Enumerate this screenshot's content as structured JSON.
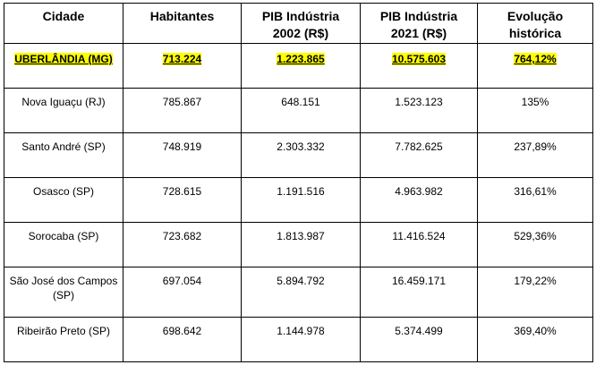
{
  "table": {
    "headers": [
      {
        "line1": "Cidade",
        "line2": ""
      },
      {
        "line1": "Habitantes",
        "line2": ""
      },
      {
        "line1": "PIB Indústria",
        "line2": "2002 (R$)"
      },
      {
        "line1": "PIB Indústria",
        "line2": "2021 (R$)"
      },
      {
        "line1": "Evolução",
        "line2": "histórica"
      }
    ],
    "rows": [
      {
        "city": "UBERLÂNDIA (MG)",
        "population": "713.224",
        "gdp_2002": "1.223.865",
        "gdp_2021": "10.575.603",
        "evolution": "764,12%",
        "highlight": true
      },
      {
        "city": "Nova Iguaçu (RJ)",
        "population": "785.867",
        "gdp_2002": "648.151",
        "gdp_2021": "1.523.123",
        "evolution": "135%"
      },
      {
        "city": "Santo André (SP)",
        "population": "748.919",
        "gdp_2002": "2.303.332",
        "gdp_2021": "7.782.625",
        "evolution": "237,89%"
      },
      {
        "city": "Osasco (SP)",
        "population": "728.615",
        "gdp_2002": "1.191.516",
        "gdp_2021": "4.963.982",
        "evolution": "316,61%"
      },
      {
        "city": "Sorocaba (SP)",
        "population": "723.682",
        "gdp_2002": "1.813.987",
        "gdp_2021": "11.416.524",
        "evolution": "529,36%"
      },
      {
        "city": "São José dos Campos (SP)",
        "population": "697.054",
        "gdp_2002": "5.894.792",
        "gdp_2021": "16.459.171",
        "evolution": "179,22%"
      },
      {
        "city": "Ribeirão Preto (SP)",
        "population": "698.642",
        "gdp_2002": "1.144.978",
        "gdp_2021": "5.374.499",
        "evolution": "369,40%"
      }
    ]
  },
  "colors": {
    "highlight": "#ffff00",
    "border": "#000000"
  }
}
